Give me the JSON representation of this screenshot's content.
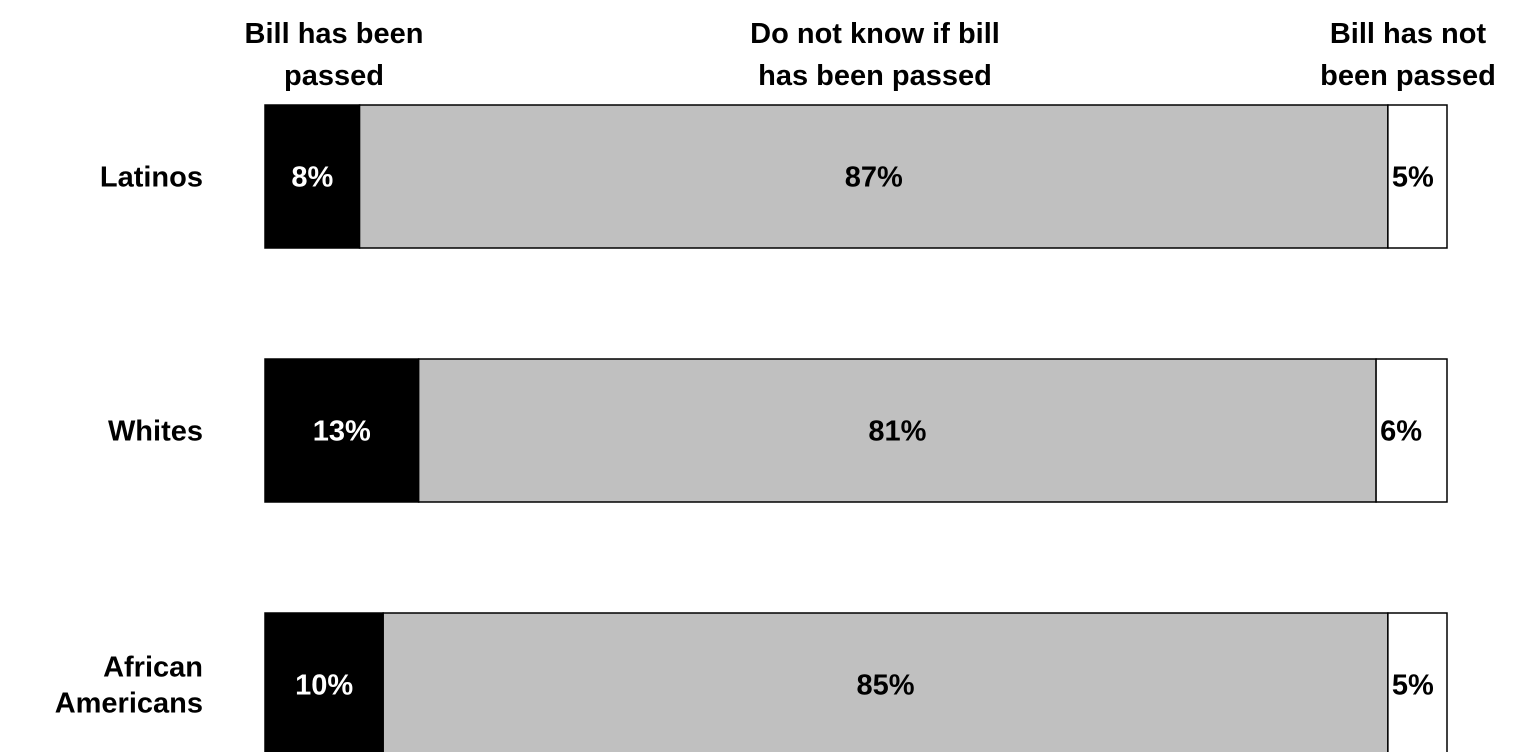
{
  "chart_data": {
    "type": "bar",
    "orientation": "horizontal",
    "stacked": true,
    "percent_stacked": true,
    "categories": [
      "Latinos",
      "Whites",
      "African Americans"
    ],
    "series": [
      {
        "name": "Bill has been passed",
        "values": [
          8,
          13,
          10
        ],
        "labels": [
          "8%",
          "13%",
          "10%"
        ],
        "color": "#000000",
        "label_color": "#ffffff"
      },
      {
        "name": "Do not know if bill has been passed",
        "values": [
          87,
          81,
          85
        ],
        "labels": [
          "87%",
          "81%",
          "85%"
        ],
        "color": "#c0c0c0",
        "label_color": "#000000"
      },
      {
        "name": "Bill has not been passed",
        "values": [
          5,
          6,
          5
        ],
        "labels": [
          "5%",
          "6%",
          "5%"
        ],
        "color": "#ffffff",
        "label_color": "#000000"
      }
    ],
    "legend": {
      "placement": "top",
      "entries": [
        [
          "Bill has been",
          "passed"
        ],
        [
          "Do not know if bill",
          "has been passed"
        ],
        [
          "Bill has not",
          "been passed"
        ]
      ]
    },
    "category_labels": [
      [
        "Latinos"
      ],
      [
        "Whites"
      ],
      [
        "African",
        "Americans"
      ]
    ],
    "xlim": [
      0,
      100
    ],
    "grid": false,
    "title": "",
    "xlabel": "",
    "ylabel": ""
  }
}
